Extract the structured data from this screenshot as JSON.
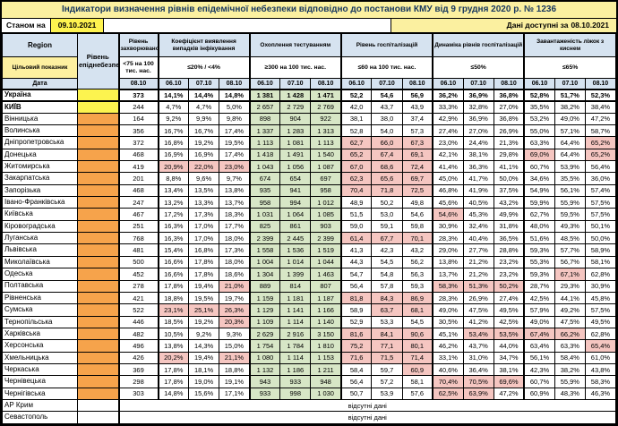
{
  "title": "Індикатори визначення рівнів епідемічної небезпеки відповідно до постанови КМУ від 9 грудня 2020 р. № 1236",
  "meta": {
    "asof_label": "Станом на",
    "asof_date": "09.10.2021",
    "available_label": "Дані доступні за",
    "available_date": "08.10.2021"
  },
  "header": {
    "region_label": "Region",
    "target_label": "Цільовий показник",
    "date_label": "Дата",
    "level_label": "Рівень епіднебезпеки",
    "groups": [
      {
        "key": "morb",
        "label": "Рівень захворюваності",
        "target": "<75 на 100 тис. нас.",
        "dates": [
          "08.10"
        ],
        "cols": 1
      },
      {
        "key": "coef",
        "label": "Коефіцієнт виявлення випадків інфікування",
        "target": "≤20% / <4%",
        "dates": [
          "06.10",
          "07.10",
          "08.10"
        ],
        "cols": 3
      },
      {
        "key": "test",
        "label": "Охоплення тестуванням",
        "target": "≥300 на 100 тис. нас.",
        "dates": [
          "06.10",
          "07.10",
          "08.10"
        ],
        "cols": 3
      },
      {
        "key": "hosp",
        "label": "Рівень госпіталізацій",
        "target": "≤60 на 100 тис. нас.",
        "dates": [
          "06.10",
          "07.10",
          "08.10"
        ],
        "cols": 3
      },
      {
        "key": "dyn",
        "label": "Динаміка рівнів госпіталізацій",
        "target": "≤50%",
        "dates": [
          "06.10",
          "07.10",
          "08.10"
        ],
        "cols": 3
      },
      {
        "key": "beds",
        "label": "Завантаженість ліжок з киснем",
        "target": "≤65%",
        "dates": [
          "06.10",
          "07.10",
          "08.10"
        ],
        "cols": 3
      }
    ]
  },
  "thresholds": {
    "coef_max": 20,
    "test_min": 300,
    "hosp_max": 60,
    "dyn_max": 50,
    "beds_max": 65
  },
  "no_data_text": "відсутні дані",
  "colors": {
    "title_bg": "#fbf0a0",
    "title_text": "#17375e",
    "date_box_bg": "#fef34f",
    "header_blue": "#d6e3f0",
    "target_yellow": "#fdf0a0",
    "level_yellow": "#fcf34f",
    "level_orange": "#f6a34b",
    "green": "#d7e6c6",
    "pink": "#f5c6c1"
  },
  "rows": [
    {
      "name": "Україна",
      "level": "yellow",
      "emph": "row",
      "morb": "373",
      "coef": [
        "14,1%",
        "14,4%",
        "14,8%"
      ],
      "test": [
        "1 381",
        "1 428",
        "1 471"
      ],
      "hosp": [
        "52,2",
        "54,6",
        "56,9"
      ],
      "dyn": [
        "36,2%",
        "36,9%",
        "36,8%"
      ],
      "beds": [
        "52,8%",
        "51,7%",
        "52,3%"
      ]
    },
    {
      "name": "КИЇВ",
      "level": "yellow",
      "emph": "name",
      "morb": "244",
      "coef": [
        "4,7%",
        "4,7%",
        "5,0%"
      ],
      "test": [
        "2 657",
        "2 729",
        "2 769"
      ],
      "hosp": [
        "42,0",
        "43,7",
        "43,9"
      ],
      "dyn": [
        "33,3%",
        "32,8%",
        "27,0%"
      ],
      "beds": [
        "35,5%",
        "38,2%",
        "38,4%"
      ]
    },
    {
      "name": "Вінницька",
      "level": "orange",
      "morb": "164",
      "coef": [
        "9,2%",
        "9,9%",
        "9,8%"
      ],
      "test": [
        "898",
        "904",
        "922"
      ],
      "hosp": [
        "38,1",
        "38,0",
        "37,4"
      ],
      "dyn": [
        "42,9%",
        "36,9%",
        "36,8%"
      ],
      "beds": [
        "53,2%",
        "49,0%",
        "47,2%"
      ]
    },
    {
      "name": "Волинська",
      "level": "orange",
      "morb": "356",
      "coef": [
        "16,7%",
        "16,7%",
        "17,4%"
      ],
      "test": [
        "1 337",
        "1 283",
        "1 313"
      ],
      "hosp": [
        "52,8",
        "54,0",
        "57,3"
      ],
      "dyn": [
        "27,4%",
        "27,0%",
        "26,9%"
      ],
      "beds": [
        "55,0%",
        "57,1%",
        "58,7%"
      ]
    },
    {
      "name": "Дніпропетровська",
      "level": "orange",
      "morb": "372",
      "coef": [
        "16,8%",
        "19,2%",
        "19,5%"
      ],
      "test": [
        "1 113",
        "1 081",
        "1 113"
      ],
      "hosp": [
        "62,7",
        "66,0",
        "67,3"
      ],
      "dyn": [
        "23,0%",
        "24,4%",
        "21,3%"
      ],
      "beds": [
        "63,3%",
        "64,4%",
        "65,2%"
      ]
    },
    {
      "name": "Донецька",
      "level": "orange",
      "morb": "468",
      "coef": [
        "16,9%",
        "16,9%",
        "17,4%"
      ],
      "test": [
        "1 418",
        "1 491",
        "1 540"
      ],
      "hosp": [
        "65,2",
        "67,4",
        "69,1"
      ],
      "dyn": [
        "42,1%",
        "38,1%",
        "29,8%"
      ],
      "beds": [
        "69,0%",
        "64,4%",
        "65,2%"
      ]
    },
    {
      "name": "Житомирська",
      "level": "orange",
      "morb": "419",
      "coef": [
        "20,9%",
        "22,0%",
        "23,0%"
      ],
      "test": [
        "1 043",
        "1 056",
        "1 087"
      ],
      "hosp": [
        "67,0",
        "68,6",
        "72,4"
      ],
      "dyn": [
        "41,4%",
        "36,3%",
        "41,1%"
      ],
      "beds": [
        "60,7%",
        "53,9%",
        "56,4%"
      ]
    },
    {
      "name": "Закарпатська",
      "level": "orange",
      "morb": "201",
      "coef": [
        "8,8%",
        "9,6%",
        "9,7%"
      ],
      "test": [
        "674",
        "654",
        "697"
      ],
      "hosp": [
        "62,3",
        "65,6",
        "69,7"
      ],
      "dyn": [
        "45,0%",
        "41,7%",
        "50,0%"
      ],
      "beds": [
        "34,6%",
        "35,5%",
        "36,0%"
      ]
    },
    {
      "name": "Запорізька",
      "level": "orange",
      "morb": "468",
      "coef": [
        "13,4%",
        "13,5%",
        "13,8%"
      ],
      "test": [
        "935",
        "941",
        "958"
      ],
      "hosp": [
        "70,4",
        "71,8",
        "72,5"
      ],
      "dyn": [
        "46,8%",
        "41,9%",
        "37,5%"
      ],
      "beds": [
        "54,9%",
        "56,1%",
        "57,4%"
      ]
    },
    {
      "name": "Івано-Франківська",
      "level": "orange",
      "morb": "247",
      "coef": [
        "13,2%",
        "13,3%",
        "13,7%"
      ],
      "test": [
        "958",
        "994",
        "1 012"
      ],
      "hosp": [
        "48,9",
        "50,2",
        "49,8"
      ],
      "dyn": [
        "45,6%",
        "40,5%",
        "43,2%"
      ],
      "beds": [
        "59,9%",
        "55,9%",
        "57,5%"
      ]
    },
    {
      "name": "Київська",
      "level": "orange",
      "morb": "467",
      "coef": [
        "17,2%",
        "17,3%",
        "18,3%"
      ],
      "test": [
        "1 031",
        "1 064",
        "1 085"
      ],
      "hosp": [
        "51,5",
        "53,0",
        "54,6"
      ],
      "dyn": [
        "54,6%",
        "45,3%",
        "49,9%"
      ],
      "beds": [
        "62,7%",
        "59,5%",
        "57,5%"
      ]
    },
    {
      "name": "Кіровоградська",
      "level": "orange",
      "morb": "251",
      "coef": [
        "16,3%",
        "17,0%",
        "17,7%"
      ],
      "test": [
        "825",
        "861",
        "903"
      ],
      "hosp": [
        "59,0",
        "59,1",
        "59,8"
      ],
      "dyn": [
        "30,9%",
        "32,4%",
        "31,8%"
      ],
      "beds": [
        "48,0%",
        "49,3%",
        "50,1%"
      ]
    },
    {
      "name": "Луганська",
      "level": "orange",
      "morb": "768",
      "coef": [
        "16,3%",
        "17,0%",
        "18,0%"
      ],
      "test": [
        "2 399",
        "2 445",
        "2 399"
      ],
      "hosp": [
        "61,4",
        "67,7",
        "70,1"
      ],
      "dyn": [
        "28,3%",
        "40,4%",
        "36,5%"
      ],
      "beds": [
        "51,6%",
        "48,5%",
        "50,0%"
      ]
    },
    {
      "name": "Львівська",
      "level": "orange",
      "morb": "481",
      "coef": [
        "15,4%",
        "16,8%",
        "17,3%"
      ],
      "test": [
        "1 558",
        "1 536",
        "1 519"
      ],
      "hosp": [
        "41,3",
        "42,3",
        "43,2"
      ],
      "dyn": [
        "29,0%",
        "27,7%",
        "28,8%"
      ],
      "beds": [
        "59,3%",
        "57,7%",
        "58,9%"
      ]
    },
    {
      "name": "Миколаївська",
      "level": "orange",
      "morb": "500",
      "coef": [
        "16,6%",
        "17,8%",
        "18,0%"
      ],
      "test": [
        "1 004",
        "1 014",
        "1 044"
      ],
      "hosp": [
        "44,3",
        "54,5",
        "56,2"
      ],
      "dyn": [
        "13,8%",
        "21,2%",
        "23,2%"
      ],
      "beds": [
        "55,3%",
        "56,7%",
        "58,1%"
      ]
    },
    {
      "name": "Одеська",
      "level": "orange",
      "morb": "452",
      "coef": [
        "16,6%",
        "17,8%",
        "18,6%"
      ],
      "test": [
        "1 304",
        "1 399",
        "1 463"
      ],
      "hosp": [
        "54,7",
        "54,8",
        "56,3"
      ],
      "dyn": [
        "13,7%",
        "21,2%",
        "23,2%"
      ],
      "beds": [
        "59,3%",
        "67,1%",
        "62,8%"
      ]
    },
    {
      "name": "Полтавська",
      "level": "orange",
      "morb": "278",
      "coef": [
        "17,8%",
        "19,4%",
        "21,0%"
      ],
      "test": [
        "889",
        "814",
        "807"
      ],
      "hosp": [
        "56,4",
        "57,8",
        "59,3"
      ],
      "dyn": [
        "58,3%",
        "51,3%",
        "50,2%"
      ],
      "beds": [
        "28,7%",
        "29,3%",
        "30,9%"
      ]
    },
    {
      "name": "Рівненська",
      "level": "orange",
      "morb": "421",
      "coef": [
        "18,8%",
        "19,5%",
        "19,7%"
      ],
      "test": [
        "1 159",
        "1 181",
        "1 187"
      ],
      "hosp": [
        "81,8",
        "84,3",
        "86,9"
      ],
      "dyn": [
        "28,3%",
        "26,9%",
        "27,4%"
      ],
      "beds": [
        "42,5%",
        "44,1%",
        "45,8%"
      ]
    },
    {
      "name": "Сумська",
      "level": "orange",
      "morb": "522",
      "coef": [
        "23,1%",
        "25,1%",
        "26,3%"
      ],
      "test": [
        "1 129",
        "1 141",
        "1 166"
      ],
      "hosp": [
        "58,9",
        "63,7",
        "68,1"
      ],
      "dyn": [
        "49,0%",
        "47,5%",
        "49,5%"
      ],
      "beds": [
        "57,9%",
        "49,2%",
        "57,5%"
      ]
    },
    {
      "name": "Тернопільська",
      "level": "orange",
      "morb": "446",
      "coef": [
        "18,5%",
        "19,2%",
        "20,3%"
      ],
      "test": [
        "1 109",
        "1 114",
        "1 140"
      ],
      "hosp": [
        "52,9",
        "53,3",
        "54,5"
      ],
      "dyn": [
        "30,5%",
        "41,2%",
        "42,5%"
      ],
      "beds": [
        "49,0%",
        "47,5%",
        "49,5%"
      ]
    },
    {
      "name": "Харківська",
      "level": "orange",
      "morb": "482",
      "coef": [
        "10,5%",
        "9,2%",
        "9,3%"
      ],
      "test": [
        "2 629",
        "2 916",
        "3 150"
      ],
      "hosp": [
        "81,6",
        "84,1",
        "90,6"
      ],
      "dyn": [
        "45,1%",
        "53,4%",
        "53,5%"
      ],
      "beds": [
        "67,4%",
        "66,2%",
        "62,8%"
      ]
    },
    {
      "name": "Херсонська",
      "level": "orange",
      "morb": "496",
      "coef": [
        "13,8%",
        "14,3%",
        "15,0%"
      ],
      "test": [
        "1 754",
        "1 784",
        "1 810"
      ],
      "hosp": [
        "75,2",
        "77,1",
        "80,1"
      ],
      "dyn": [
        "46,2%",
        "43,7%",
        "44,0%"
      ],
      "beds": [
        "63,4%",
        "63,3%",
        "65,4%"
      ]
    },
    {
      "name": "Хмельницька",
      "level": "orange",
      "morb": "426",
      "coef": [
        "20,2%",
        "19,4%",
        "21,1%"
      ],
      "test": [
        "1 080",
        "1 114",
        "1 153"
      ],
      "hosp": [
        "71,6",
        "71,5",
        "71,4"
      ],
      "dyn": [
        "33,1%",
        "31,0%",
        "34,7%"
      ],
      "beds": [
        "56,1%",
        "58,4%",
        "61,0%"
      ]
    },
    {
      "name": "Черкаська",
      "level": "orange",
      "morb": "369",
      "coef": [
        "17,8%",
        "18,1%",
        "18,8%"
      ],
      "test": [
        "1 132",
        "1 186",
        "1 211"
      ],
      "hosp": [
        "58,4",
        "59,7",
        "60,9"
      ],
      "dyn": [
        "40,6%",
        "36,4%",
        "38,1%"
      ],
      "beds": [
        "42,3%",
        "38,2%",
        "43,8%"
      ]
    },
    {
      "name": "Чернівецька",
      "level": "orange",
      "morb": "298",
      "coef": [
        "17,8%",
        "19,0%",
        "19,1%"
      ],
      "test": [
        "943",
        "933",
        "948"
      ],
      "hosp": [
        "56,4",
        "57,2",
        "58,1"
      ],
      "dyn": [
        "70,4%",
        "70,5%",
        "69,6%"
      ],
      "beds": [
        "60,7%",
        "55,9%",
        "58,3%"
      ]
    },
    {
      "name": "Чернігівська",
      "level": "orange",
      "morb": "303",
      "coef": [
        "14,8%",
        "15,6%",
        "17,1%"
      ],
      "test": [
        "933",
        "998",
        "1 030"
      ],
      "hosp": [
        "50,7",
        "53,9",
        "57,6"
      ],
      "dyn": [
        "62,5%",
        "63,9%",
        "47,2%"
      ],
      "beds": [
        "60,9%",
        "48,3%",
        "46,3%"
      ]
    },
    {
      "name": "АР Крим",
      "level": "none",
      "no_data": true
    },
    {
      "name": "Севастополь",
      "level": "none",
      "no_data": true
    }
  ]
}
